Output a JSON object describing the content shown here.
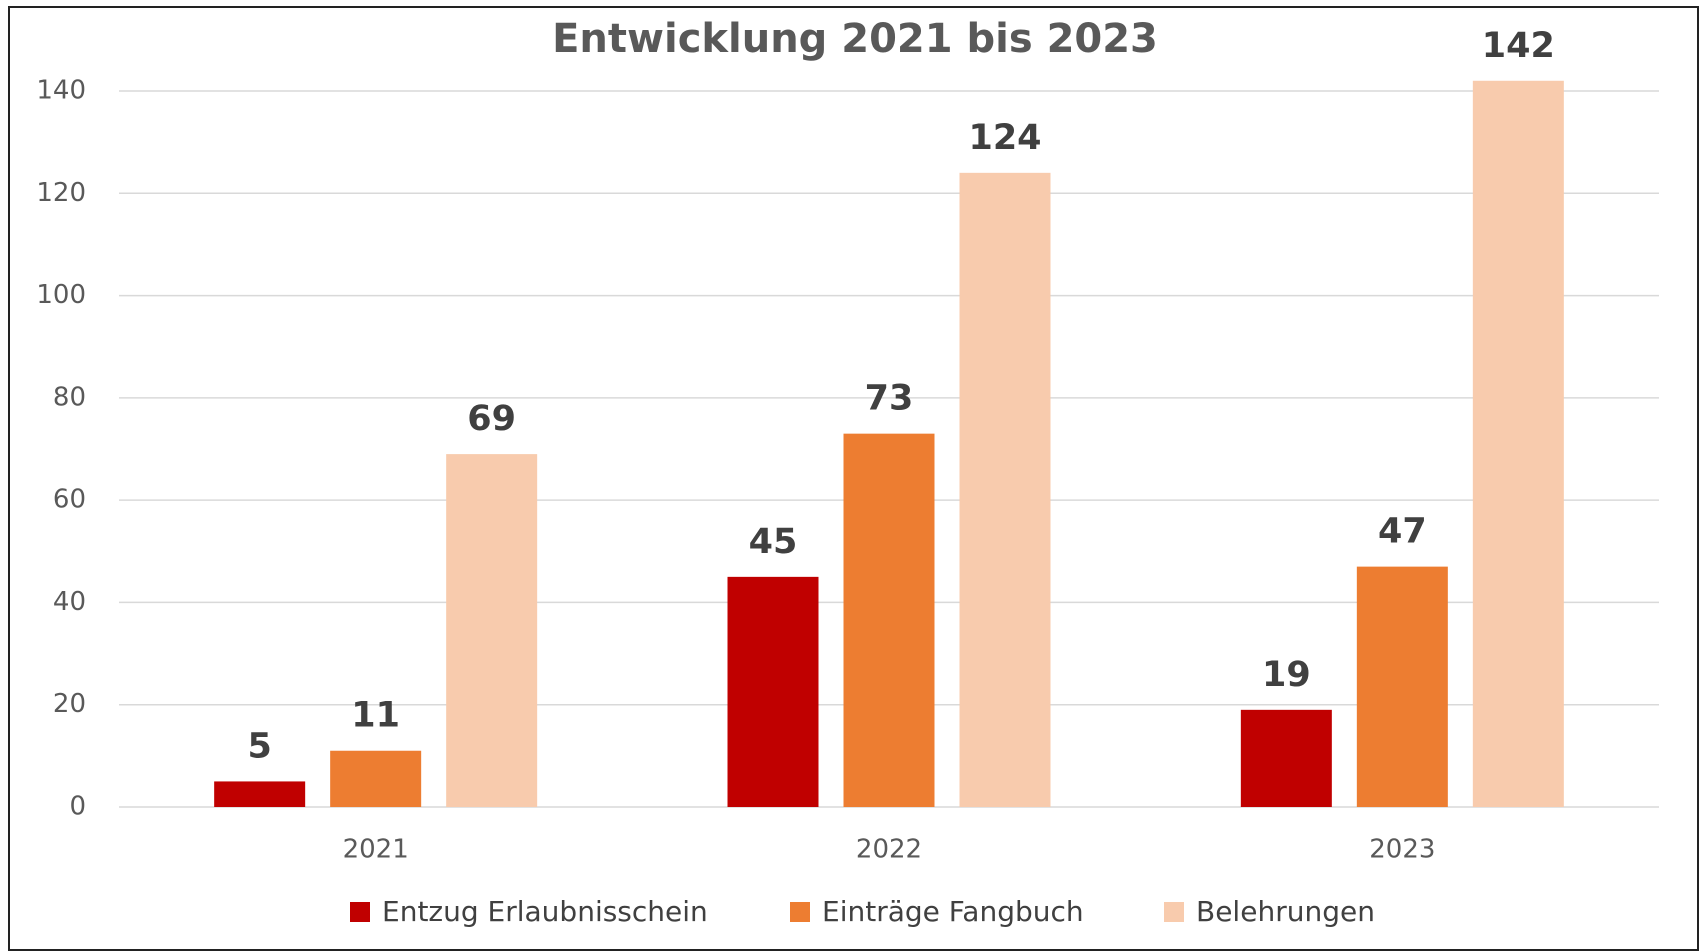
{
  "chart_data": {
    "type": "bar",
    "title": "Entwicklung 2021 bis 2023",
    "categories": [
      "2021",
      "2022",
      "2023"
    ],
    "series": [
      {
        "name": "Entzug Erlaubnisschein",
        "color": "#c00000",
        "values": [
          5,
          45,
          19
        ]
      },
      {
        "name": "Einträge Fangbuch",
        "color": "#ed7d31",
        "values": [
          11,
          73,
          47
        ]
      },
      {
        "name": "Belehrungen",
        "color": "#f8cbad",
        "values": [
          69,
          124,
          142
        ]
      }
    ],
    "ylim": [
      0,
      140
    ],
    "yticks": [
      0,
      20,
      40,
      60,
      80,
      100,
      120,
      140
    ],
    "grid": true,
    "legend": "bottom"
  }
}
